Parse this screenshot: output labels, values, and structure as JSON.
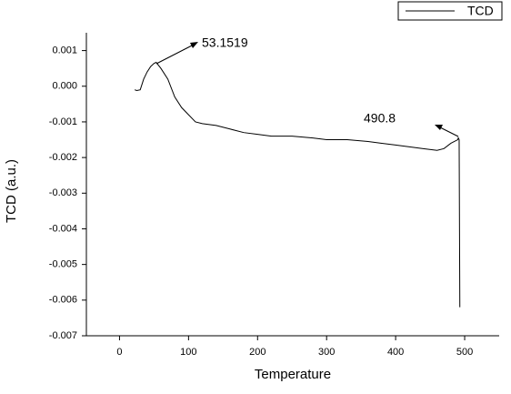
{
  "chart_data": {
    "type": "line",
    "xlabel": "Temperature",
    "ylabel": "TCD (a.u.)",
    "x": [
      22,
      25,
      30,
      35,
      40,
      45,
      50,
      53.1519,
      60,
      70,
      80,
      90,
      100,
      110,
      120,
      140,
      160,
      180,
      200,
      220,
      250,
      280,
      300,
      330,
      360,
      380,
      400,
      420,
      440,
      460,
      470,
      480,
      490,
      490.8,
      492,
      493
    ],
    "series": [
      {
        "name": "TCD",
        "color": "#000000",
        "values": [
          -0.0001,
          -0.00012,
          -0.0001,
          0.0002,
          0.0004,
          0.00055,
          0.00064,
          0.00067,
          0.0005,
          0.0002,
          -0.0003,
          -0.0006,
          -0.0008,
          -0.001,
          -0.00105,
          -0.0011,
          -0.0012,
          -0.0013,
          -0.00135,
          -0.0014,
          -0.0014,
          -0.00145,
          -0.0015,
          -0.0015,
          -0.00155,
          -0.0016,
          -0.00165,
          -0.0017,
          -0.00175,
          -0.0018,
          -0.00175,
          -0.0016,
          -0.0015,
          -0.00145,
          -0.0015,
          -0.0062
        ]
      }
    ],
    "annotations": [
      "53.1519",
      "490.8"
    ],
    "xlim": [
      -48,
      550
    ],
    "xticks": [
      0,
      100,
      200,
      300,
      400,
      500
    ],
    "ylim": [
      -0.007,
      0.0015
    ],
    "yticks": [
      0.001,
      {
        "value": 0,
        "label": "0.000"
      },
      -0.001,
      -0.002,
      -0.003,
      -0.004,
      -0.005,
      -0.006,
      -0.007
    ],
    "legend": "upper right"
  }
}
